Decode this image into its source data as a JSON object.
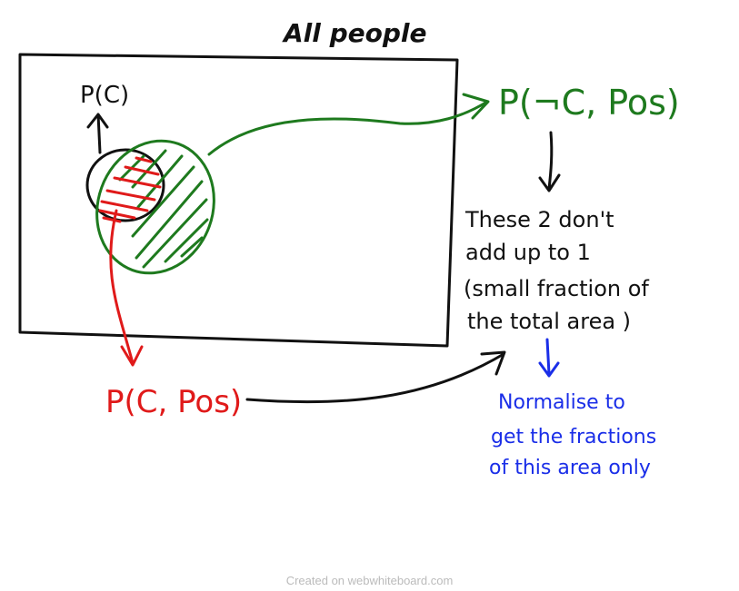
{
  "colors": {
    "black": "#111111",
    "green": "#1e7a1e",
    "red": "#e01a1a",
    "blue": "#1a2ee8",
    "footer": "#bbbbbb"
  },
  "labels": {
    "population": "All people",
    "prior": "P(C)",
    "joint_not_c": "P(¬C, Pos)",
    "joint_c": "P(C, Pos)",
    "note": [
      "These 2 don't",
      "add up to 1",
      "(small fraction of",
      "the total area )"
    ],
    "normalise": [
      "Normalise to",
      "get the fractions",
      "of this area only"
    ]
  },
  "footer": "Created on webwhiteboard.com"
}
